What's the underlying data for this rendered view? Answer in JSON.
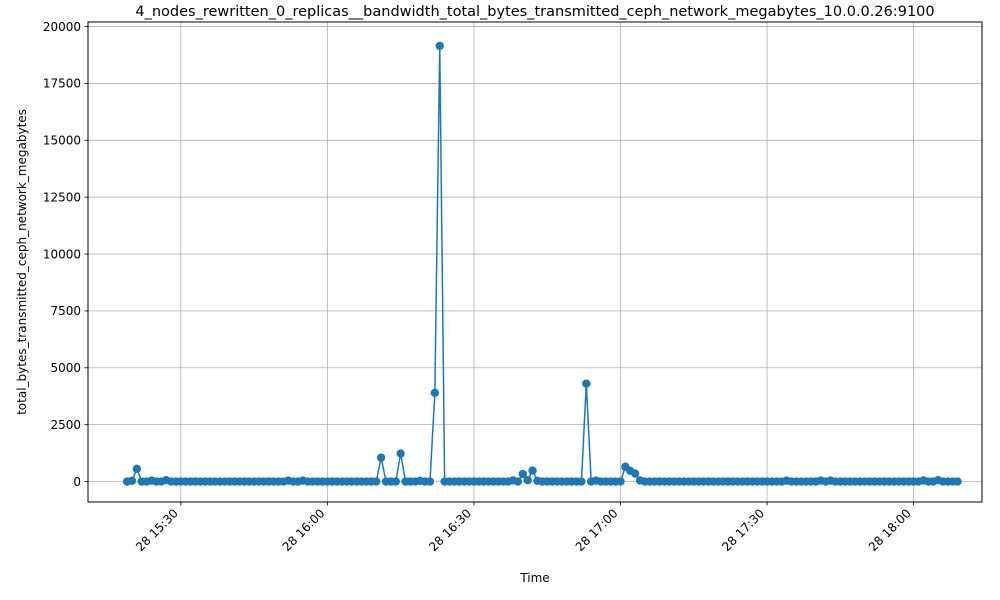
{
  "chart_data": {
    "type": "line",
    "title": "4_nodes_rewritten_0_replicas__bandwidth_total_bytes_transmitted_ceph_network_megabytes_10.0.0.26:9100",
    "xlabel": "Time",
    "ylabel": "total_bytes_transmitted_ceph_network_megabytes",
    "xlim": [
      "2024-01-28 15:11",
      "2024-01-28 18:14"
    ],
    "ylim": [
      -900,
      20200
    ],
    "xticks": [
      {
        "t": "2024-01-28 15:30",
        "label": "28 15:30"
      },
      {
        "t": "2024-01-28 16:00",
        "label": "28 16:00"
      },
      {
        "t": "2024-01-28 16:30",
        "label": "28 16:30"
      },
      {
        "t": "2024-01-28 17:00",
        "label": "28 17:00"
      },
      {
        "t": "2024-01-28 17:30",
        "label": "28 17:30"
      },
      {
        "t": "2024-01-28 18:00",
        "label": "28 18:00"
      }
    ],
    "yticks": [
      0,
      2500,
      5000,
      7500,
      10000,
      12500,
      15000,
      17500,
      20000
    ],
    "grid": true,
    "color": "#1f77b4",
    "series": [
      {
        "start": "2024-01-28 15:19",
        "interval_minutes": 1,
        "values": [
          0,
          30,
          560,
          0,
          0,
          40,
          0,
          0,
          60,
          0,
          0,
          0,
          0,
          0,
          0,
          0,
          0,
          0,
          0,
          0,
          0,
          0,
          0,
          0,
          0,
          0,
          0,
          0,
          0,
          0,
          0,
          0,
          0,
          40,
          0,
          0,
          40,
          0,
          0,
          0,
          0,
          0,
          0,
          0,
          0,
          0,
          0,
          0,
          0,
          0,
          0,
          0,
          1050,
          0,
          0,
          0,
          1230,
          0,
          0,
          0,
          30,
          0,
          0,
          3900,
          19150,
          0,
          0,
          0,
          0,
          0,
          0,
          0,
          0,
          0,
          0,
          0,
          0,
          0,
          0,
          50,
          0,
          330,
          60,
          480,
          30,
          0,
          0,
          0,
          0,
          0,
          0,
          0,
          0,
          0,
          4300,
          0,
          40,
          0,
          0,
          0,
          0,
          0,
          650,
          470,
          350,
          50,
          0,
          0,
          0,
          0,
          0,
          0,
          0,
          0,
          0,
          0,
          0,
          0,
          0,
          0,
          0,
          0,
          0,
          0,
          0,
          0,
          0,
          0,
          0,
          0,
          0,
          0,
          0,
          0,
          0,
          40,
          0,
          0,
          0,
          0,
          0,
          0,
          40,
          0,
          40,
          0,
          0,
          0,
          0,
          0,
          0,
          0,
          0,
          0,
          0,
          0,
          0,
          0,
          0,
          0,
          0,
          0,
          0,
          50,
          0,
          0,
          60,
          0,
          0,
          0,
          0
        ]
      }
    ]
  }
}
